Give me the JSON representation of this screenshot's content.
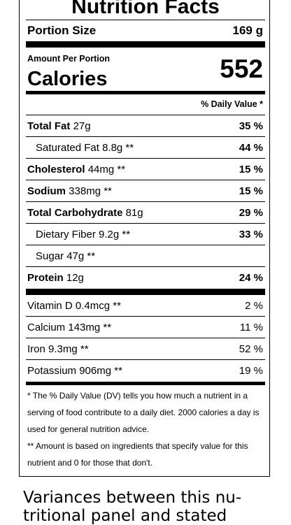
{
  "label": {
    "title": "Nutrition Facts",
    "portion": {
      "label": "Portion Size",
      "value": "169 g"
    },
    "amount_per_portion": "Amount Per Portion",
    "calories": {
      "label": "Calories",
      "value": "552"
    },
    "daily_value_header": "% Daily Value *",
    "nutrients": [
      {
        "name": "Total Fat",
        "amount": "27g",
        "dv": "35 %"
      },
      {
        "name": "Saturated Fat",
        "amount": "8.8g **",
        "dv": "44 %"
      },
      {
        "name": "Cholesterol",
        "amount": "44mg **",
        "dv": "15 %"
      },
      {
        "name": "Sodium",
        "amount": "338mg **",
        "dv": "15 %"
      },
      {
        "name": "Total Carbohydrate",
        "amount": "81g",
        "dv": "29 %"
      },
      {
        "name": "Dietary Fiber",
        "amount": "9.2g **",
        "dv": "33 %"
      },
      {
        "name": "Sugar",
        "amount": "47g **",
        "dv": ""
      },
      {
        "name": "Protein",
        "amount": "12g",
        "dv": "24 %"
      }
    ],
    "vitamins": [
      {
        "name": "Vitamin D",
        "amount": "0.4mcg **",
        "dv": "2 %"
      },
      {
        "name": "Calcium",
        "amount": "143mg **",
        "dv": "11 %"
      },
      {
        "name": "Iron",
        "amount": "9.3mg **",
        "dv": "52 %"
      },
      {
        "name": "Potassium",
        "amount": "906mg **",
        "dv": "19 %"
      }
    ],
    "footnotes": [
      "* The % Daily Value (DV) tells you how much a nutrient in a serving of food contribute to a daily diet. 2000 calories a day is used for general nutrition advice.",
      "** Amount is based on ingredients that specify value for this nutrient and 0 for those that don't."
    ]
  },
  "caption": "Variances between this nu-tritional panel and stated"
}
